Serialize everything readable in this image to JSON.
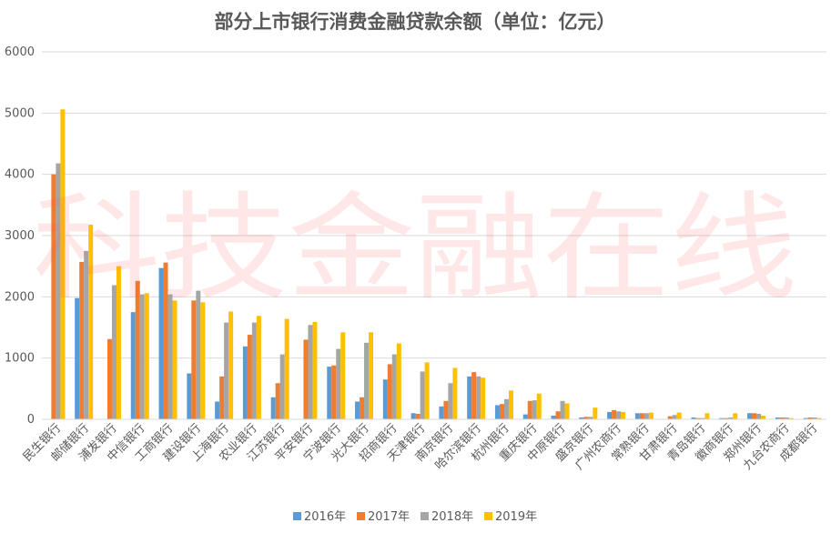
{
  "chart_data": {
    "type": "bar",
    "title": "部分上市银行消费金融贷款余额（单位：亿元）",
    "watermark": "科技金融在线",
    "ylim": [
      0,
      6000
    ],
    "yticks": [
      "0",
      "1000",
      "2000",
      "3000",
      "4000",
      "5000",
      "6000"
    ],
    "grid": true,
    "legend_position": "bottom",
    "categories": [
      "民生银行",
      "邮储银行",
      "浦发银行",
      "中信银行",
      "工商银行",
      "建设银行",
      "上海银行",
      "农业银行",
      "江苏银行",
      "平安银行",
      "宁波银行",
      "光大银行",
      "招商银行",
      "天津银行",
      "南京银行",
      "哈尔滨银行",
      "杭州银行",
      "重庆银行",
      "中原银行",
      "盛京银行",
      "广州农商行",
      "常熟银行",
      "甘肃银行",
      "青岛银行",
      "徽商银行",
      "郑州银行",
      "九台农商行",
      "成都银行"
    ],
    "series": [
      {
        "name": "2016年",
        "color": "#5B9BD5",
        "values": [
          0,
          1980,
          0,
          1750,
          2470,
          750,
          290,
          1190,
          360,
          0,
          860,
          290,
          650,
          100,
          210,
          700,
          230,
          80,
          60,
          30,
          120,
          100,
          0,
          30,
          20,
          100,
          30,
          20
        ]
      },
      {
        "name": "2017年",
        "color": "#ED7D31",
        "values": [
          4000,
          2570,
          1310,
          2260,
          2560,
          1940,
          700,
          1380,
          590,
          1300,
          880,
          360,
          900,
          90,
          300,
          770,
          250,
          300,
          130,
          40,
          150,
          100,
          50,
          20,
          20,
          100,
          30,
          30
        ]
      },
      {
        "name": "2018年",
        "color": "#A5A5A5",
        "values": [
          4180,
          2750,
          2190,
          2040,
          2040,
          2100,
          1580,
          1580,
          1060,
          1540,
          1150,
          1250,
          1060,
          780,
          590,
          700,
          330,
          310,
          300,
          40,
          130,
          100,
          70,
          20,
          30,
          90,
          30,
          30
        ]
      },
      {
        "name": "2019年",
        "color": "#FFC000",
        "values": [
          5060,
          3180,
          2500,
          2060,
          1940,
          1910,
          1760,
          1690,
          1640,
          1590,
          1420,
          1420,
          1240,
          930,
          840,
          680,
          470,
          420,
          260,
          190,
          120,
          110,
          110,
          100,
          100,
          60,
          20,
          20
        ]
      }
    ]
  }
}
